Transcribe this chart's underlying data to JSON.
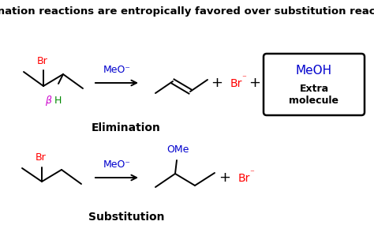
{
  "title": "Elimination reactions are entropically favored over substitution reactions",
  "title_fontsize": 9.5,
  "bg_color": "#ffffff",
  "elim_label": "Elimination",
  "sub_label": "Substitution",
  "meo_color": "#0000cd",
  "br_color": "#ff0000",
  "beta_color": "#cc00cc",
  "h_color": "#008800",
  "black": "#000000",
  "box_meoh": "MeOH",
  "box_extra": "Extra\nmolecule",
  "figw": 4.74,
  "figh": 3.04,
  "dpi": 100
}
